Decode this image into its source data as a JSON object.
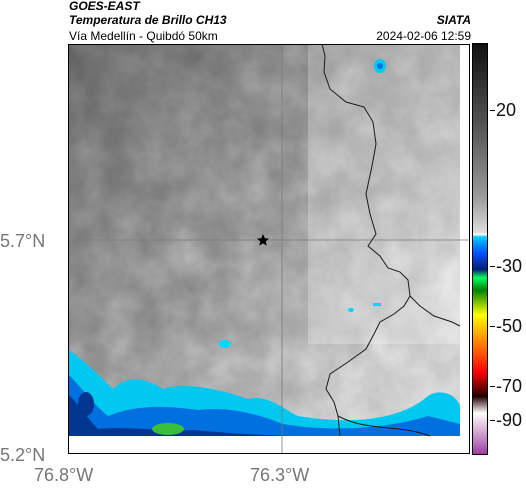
{
  "header": {
    "title": "GOES-EAST",
    "subtitle": "Temperatura de Brillo CH13",
    "organization": "SIATA",
    "location": "Vía Medellín - Quibdó 50km",
    "datetime": "2024-02-06 12:59"
  },
  "map": {
    "latitude_labels": [
      "5.7°N",
      "5.2°N"
    ],
    "longitude_labels": [
      "76.8°W",
      "76.3°W"
    ],
    "marker": "star-icon"
  },
  "colorbar": {
    "tick_labels": [
      "20",
      "-30",
      "-50",
      "-70",
      "-90"
    ],
    "stops": [
      "#111111",
      "#555555",
      "#999999",
      "#dddddd",
      "#ffffff",
      "#00d0ff",
      "#0050ff",
      "#002070",
      "#00ff60",
      "#008000",
      "#ffff00",
      "#ff8000",
      "#ff0000",
      "#200000",
      "#ffffff",
      "#a040a0"
    ]
  }
}
